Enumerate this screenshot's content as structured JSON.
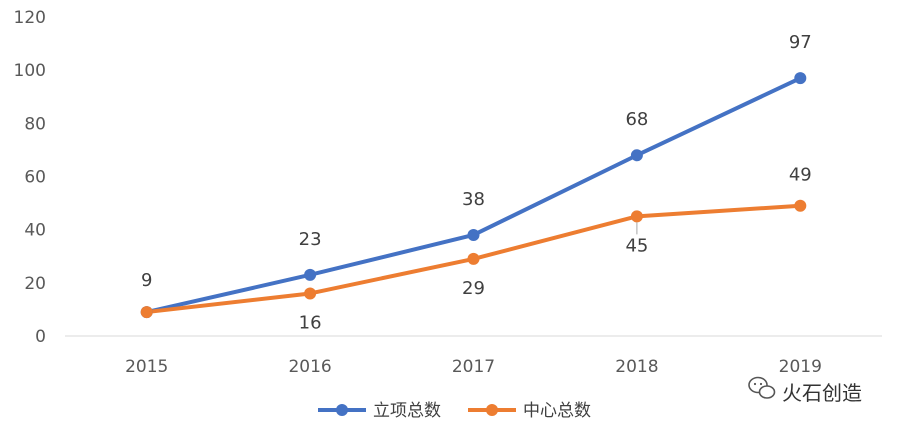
{
  "chart_data": {
    "type": "line",
    "categories": [
      "2015",
      "2016",
      "2017",
      "2018",
      "2019"
    ],
    "series": [
      {
        "name": "立项总数",
        "color": "#4472C4",
        "values": [
          9,
          23,
          38,
          68,
          97
        ]
      },
      {
        "name": "中心总数",
        "color": "#ED7D31",
        "values": [
          9,
          16,
          29,
          45,
          49
        ]
      }
    ],
    "ylim": [
      0,
      120
    ],
    "yticks": [
      "0",
      "20",
      "40",
      "60",
      "80",
      "100",
      "120"
    ],
    "title": "",
    "xlabel": "",
    "ylabel": "",
    "grid": false,
    "legend_position": "bottom"
  },
  "watermark": {
    "text": "火石创造",
    "icon": "wechat-icon"
  }
}
